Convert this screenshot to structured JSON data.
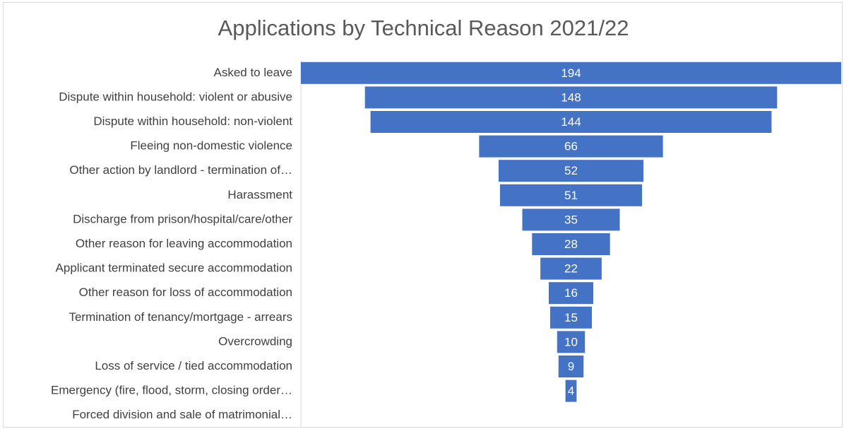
{
  "chart_data": {
    "type": "bar",
    "orientation": "horizontal-funnel",
    "title": "Applications by Technical Reason 2021/22",
    "categories": [
      "Asked to leave",
      "Dispute within household: violent or abusive",
      "Dispute within household: non-violent",
      "Fleeing non-domestic violence",
      "Other action by landlord - termination of…",
      "Harassment",
      "Discharge from prison/hospital/care/other",
      "Other reason for leaving accommodation",
      "Applicant terminated secure accommodation",
      "Other reason for loss of accommodation",
      "Termination of tenancy/mortgage - arrears",
      "Overcrowding",
      "Loss of service / tied accommodation",
      "Emergency (fire, flood, storm, closing order…",
      "Forced division and sale of matrimonial…"
    ],
    "values": [
      194,
      148,
      144,
      66,
      52,
      51,
      35,
      28,
      22,
      16,
      15,
      10,
      9,
      4,
      null
    ],
    "data_labels": [
      "194",
      "148",
      "144",
      "66",
      "52",
      "51",
      "35",
      "28",
      "22",
      "16",
      "15",
      "10",
      "9",
      "4",
      ""
    ],
    "bar_color": "#4472c4",
    "axis_line_color": "#d9d9d9",
    "grid": false,
    "legend": "none"
  }
}
